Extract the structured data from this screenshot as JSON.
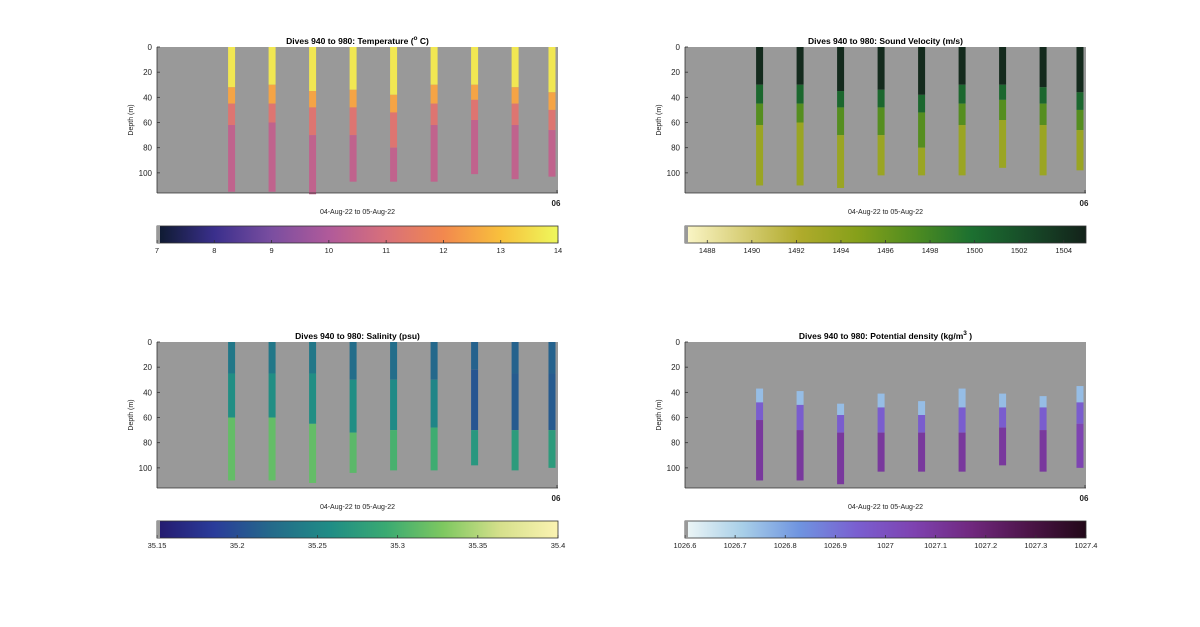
{
  "chart_data": [
    {
      "type": "heatmap",
      "title": "Dives 940 to 980: Temperature (",
      "title_unit": "C)",
      "ylabel": "Depth (m)",
      "xlabel": "04-Aug-22 to 05-Aug-22",
      "x_tick_label": "06",
      "yticks": [
        "0",
        "20",
        "40",
        "60",
        "80",
        "100"
      ],
      "ylim": [
        0,
        116
      ],
      "colorbar": {
        "ticks": [
          "7",
          "8",
          "9",
          "10",
          "11",
          "12",
          "13",
          "14"
        ],
        "range": [
          7,
          14
        ],
        "stops": [
          "#0d1a2e",
          "#3a2f8c",
          "#7a4ea0",
          "#b05a9a",
          "#d8707a",
          "#f2884e",
          "#f8c03c",
          "#eef85c"
        ]
      },
      "profiles": [
        {
          "max_depth": 115,
          "layers": [
            {
              "to": 32,
              "value": 13.7
            },
            {
              "to": 45,
              "value": 12.5
            },
            {
              "to": 62,
              "value": 11.2
            },
            {
              "to": 115,
              "value": 10.4
            }
          ]
        },
        {
          "max_depth": 115,
          "layers": [
            {
              "to": 30,
              "value": 13.7
            },
            {
              "to": 45,
              "value": 12.5
            },
            {
              "to": 60,
              "value": 11.2
            },
            {
              "to": 115,
              "value": 10.4
            }
          ]
        },
        {
          "max_depth": 117,
          "layers": [
            {
              "to": 35,
              "value": 13.7
            },
            {
              "to": 48,
              "value": 12.5
            },
            {
              "to": 70,
              "value": 11.2
            },
            {
              "to": 117,
              "value": 10.4
            }
          ]
        },
        {
          "max_depth": 107,
          "layers": [
            {
              "to": 34,
              "value": 13.7
            },
            {
              "to": 48,
              "value": 12.5
            },
            {
              "to": 70,
              "value": 11.2
            },
            {
              "to": 107,
              "value": 10.4
            }
          ]
        },
        {
          "max_depth": 107,
          "layers": [
            {
              "to": 38,
              "value": 13.7
            },
            {
              "to": 52,
              "value": 12.5
            },
            {
              "to": 80,
              "value": 11.2
            },
            {
              "to": 107,
              "value": 10.4
            }
          ]
        },
        {
          "max_depth": 107,
          "layers": [
            {
              "to": 30,
              "value": 13.7
            },
            {
              "to": 45,
              "value": 12.5
            },
            {
              "to": 62,
              "value": 11.2
            },
            {
              "to": 107,
              "value": 10.4
            }
          ]
        },
        {
          "max_depth": 101,
          "layers": [
            {
              "to": 30,
              "value": 13.7
            },
            {
              "to": 42,
              "value": 12.5
            },
            {
              "to": 58,
              "value": 11.2
            },
            {
              "to": 101,
              "value": 10.4
            }
          ]
        },
        {
          "max_depth": 105,
          "layers": [
            {
              "to": 32,
              "value": 13.7
            },
            {
              "to": 45,
              "value": 12.5
            },
            {
              "to": 62,
              "value": 11.2
            },
            {
              "to": 105,
              "value": 10.4
            }
          ]
        },
        {
          "max_depth": 103,
          "layers": [
            {
              "to": 36,
              "value": 13.7
            },
            {
              "to": 50,
              "value": 12.5
            },
            {
              "to": 66,
              "value": 11.2
            },
            {
              "to": 103,
              "value": 10.4
            }
          ]
        }
      ]
    },
    {
      "type": "heatmap",
      "title": "Dives 940 to 980: Sound Velocity (m/s)",
      "ylabel": "Depth (m)",
      "xlabel": "04-Aug-22 to 05-Aug-22",
      "x_tick_label": "06",
      "yticks": [
        "0",
        "20",
        "40",
        "60",
        "80",
        "100"
      ],
      "ylim": [
        0,
        116
      ],
      "colorbar": {
        "ticks": [
          "1488",
          "1490",
          "1492",
          "1494",
          "1496",
          "1498",
          "1500",
          "1502",
          "1504"
        ],
        "range": [
          1487,
          1505
        ],
        "stops": [
          "#fbf6c8",
          "#d8cf78",
          "#b0ab2c",
          "#86a01a",
          "#4f8c20",
          "#1c7030",
          "#174a28",
          "#13221a"
        ]
      },
      "profiles": [
        {
          "max_depth": 110,
          "layers": [
            {
              "to": 30,
              "value": 1504.5
            },
            {
              "to": 45,
              "value": 1500.5
            },
            {
              "to": 62,
              "value": 1497.0
            },
            {
              "to": 110,
              "value": 1493.5
            }
          ]
        },
        {
          "max_depth": 110,
          "layers": [
            {
              "to": 30,
              "value": 1504.5
            },
            {
              "to": 45,
              "value": 1500.5
            },
            {
              "to": 60,
              "value": 1497.0
            },
            {
              "to": 110,
              "value": 1493.5
            }
          ]
        },
        {
          "max_depth": 112,
          "layers": [
            {
              "to": 35,
              "value": 1504.5
            },
            {
              "to": 48,
              "value": 1500.5
            },
            {
              "to": 70,
              "value": 1497.0
            },
            {
              "to": 112,
              "value": 1493.5
            }
          ]
        },
        {
          "max_depth": 102,
          "layers": [
            {
              "to": 34,
              "value": 1504.5
            },
            {
              "to": 48,
              "value": 1500.5
            },
            {
              "to": 70,
              "value": 1497.0
            },
            {
              "to": 102,
              "value": 1493.5
            }
          ]
        },
        {
          "max_depth": 102,
          "layers": [
            {
              "to": 38,
              "value": 1504.5
            },
            {
              "to": 52,
              "value": 1500.5
            },
            {
              "to": 80,
              "value": 1497.0
            },
            {
              "to": 102,
              "value": 1493.5
            }
          ]
        },
        {
          "max_depth": 102,
          "layers": [
            {
              "to": 30,
              "value": 1504.5
            },
            {
              "to": 45,
              "value": 1500.5
            },
            {
              "to": 62,
              "value": 1497.0
            },
            {
              "to": 102,
              "value": 1493.5
            }
          ]
        },
        {
          "max_depth": 96,
          "layers": [
            {
              "to": 30,
              "value": 1504.5
            },
            {
              "to": 42,
              "value": 1500.5
            },
            {
              "to": 58,
              "value": 1497.0
            },
            {
              "to": 96,
              "value": 1493.5
            }
          ]
        },
        {
          "max_depth": 102,
          "layers": [
            {
              "to": 32,
              "value": 1504.5
            },
            {
              "to": 45,
              "value": 1500.5
            },
            {
              "to": 62,
              "value": 1497.0
            },
            {
              "to": 102,
              "value": 1493.5
            }
          ]
        },
        {
          "max_depth": 98,
          "layers": [
            {
              "to": 36,
              "value": 1504.5
            },
            {
              "to": 50,
              "value": 1500.5
            },
            {
              "to": 66,
              "value": 1497.0
            },
            {
              "to": 98,
              "value": 1493.5
            }
          ]
        }
      ]
    },
    {
      "type": "heatmap",
      "title": "Dives 940 to 980: Salinity (psu)",
      "ylabel": "Depth (m)",
      "xlabel": "04-Aug-22 to 05-Aug-22",
      "x_tick_label": "06",
      "yticks": [
        "0",
        "20",
        "40",
        "60",
        "80",
        "100"
      ],
      "ylim": [
        0,
        116
      ],
      "colorbar": {
        "ticks": [
          "35.15",
          "35.2",
          "35.25",
          "35.3",
          "35.35",
          "35.4"
        ],
        "range": [
          35.15,
          35.4
        ],
        "stops": [
          "#241a6e",
          "#2a3c9a",
          "#246a8a",
          "#1f8c86",
          "#3aaa72",
          "#7ec860",
          "#d6e08c",
          "#fbf3b2"
        ]
      },
      "profiles": [
        {
          "max_depth": 110,
          "layers": [
            {
              "to": 25,
              "value": 35.235
            },
            {
              "to": 60,
              "value": 35.26
            },
            {
              "to": 110,
              "value": 35.315
            }
          ]
        },
        {
          "max_depth": 110,
          "layers": [
            {
              "to": 25,
              "value": 35.235
            },
            {
              "to": 60,
              "value": 35.26
            },
            {
              "to": 110,
              "value": 35.315
            }
          ]
        },
        {
          "max_depth": 112,
          "layers": [
            {
              "to": 25,
              "value": 35.235
            },
            {
              "to": 65,
              "value": 35.26
            },
            {
              "to": 112,
              "value": 35.315
            }
          ]
        },
        {
          "max_depth": 104,
          "layers": [
            {
              "to": 30,
              "value": 35.225
            },
            {
              "to": 72,
              "value": 35.26
            },
            {
              "to": 104,
              "value": 35.31
            }
          ]
        },
        {
          "max_depth": 102,
          "layers": [
            {
              "to": 30,
              "value": 35.225
            },
            {
              "to": 70,
              "value": 35.255
            },
            {
              "to": 102,
              "value": 35.3
            }
          ]
        },
        {
          "max_depth": 102,
          "layers": [
            {
              "to": 30,
              "value": 35.22
            },
            {
              "to": 68,
              "value": 35.25
            },
            {
              "to": 102,
              "value": 35.295
            }
          ]
        },
        {
          "max_depth": 98,
          "layers": [
            {
              "to": 22,
              "value": 35.215
            },
            {
              "to": 70,
              "value": 35.205
            },
            {
              "to": 98,
              "value": 35.27
            }
          ]
        },
        {
          "max_depth": 102,
          "layers": [
            {
              "to": 25,
              "value": 35.215
            },
            {
              "to": 70,
              "value": 35.21
            },
            {
              "to": 102,
              "value": 35.275
            }
          ]
        },
        {
          "max_depth": 100,
          "layers": [
            {
              "to": 25,
              "value": 35.215
            },
            {
              "to": 70,
              "value": 35.21
            },
            {
              "to": 100,
              "value": 35.275
            }
          ]
        }
      ]
    },
    {
      "type": "heatmap",
      "title": "Dives 940 to 980: Potential density (kg/m",
      "title_unit": ")",
      "ylabel": "Depth (m)",
      "xlabel": "04-Aug-22 to 05-Aug-22",
      "x_tick_label": "06",
      "yticks": [
        "0",
        "20",
        "40",
        "60",
        "80",
        "100"
      ],
      "ylim": [
        0,
        116
      ],
      "colorbar": {
        "ticks": [
          "1026.6",
          "1026.7",
          "1026.8",
          "1026.9",
          "1027",
          "1027.1",
          "1027.2",
          "1027.3",
          "1027.4"
        ],
        "range": [
          1026.6,
          1027.4
        ],
        "stops": [
          "#eef6f6",
          "#a8cfe8",
          "#6f94e0",
          "#7a5fd0",
          "#7e42b0",
          "#70287e",
          "#4c1448",
          "#220818"
        ]
      },
      "profiles": [
        {
          "min_depth": 37,
          "max_depth": 110,
          "layers": [
            {
              "to": 48,
              "value": 1026.75
            },
            {
              "to": 62,
              "value": 1026.95
            },
            {
              "to": 110,
              "value": 1027.1
            }
          ]
        },
        {
          "min_depth": 39,
          "max_depth": 110,
          "layers": [
            {
              "to": 50,
              "value": 1026.75
            },
            {
              "to": 70,
              "value": 1026.95
            },
            {
              "to": 110,
              "value": 1027.1
            }
          ]
        },
        {
          "min_depth": 49,
          "max_depth": 113,
          "layers": [
            {
              "to": 58,
              "value": 1026.75
            },
            {
              "to": 72,
              "value": 1026.95
            },
            {
              "to": 113,
              "value": 1027.1
            }
          ]
        },
        {
          "min_depth": 41,
          "max_depth": 103,
          "layers": [
            {
              "to": 52,
              "value": 1026.75
            },
            {
              "to": 72,
              "value": 1026.95
            },
            {
              "to": 103,
              "value": 1027.1
            }
          ]
        },
        {
          "min_depth": 47,
          "max_depth": 103,
          "layers": [
            {
              "to": 58,
              "value": 1026.75
            },
            {
              "to": 72,
              "value": 1026.95
            },
            {
              "to": 103,
              "value": 1027.1
            }
          ]
        },
        {
          "min_depth": 37,
          "max_depth": 103,
          "layers": [
            {
              "to": 52,
              "value": 1026.75
            },
            {
              "to": 72,
              "value": 1026.95
            },
            {
              "to": 103,
              "value": 1027.1
            }
          ]
        },
        {
          "min_depth": 41,
          "max_depth": 98,
          "layers": [
            {
              "to": 52,
              "value": 1026.75
            },
            {
              "to": 68,
              "value": 1026.95
            },
            {
              "to": 98,
              "value": 1027.1
            }
          ]
        },
        {
          "min_depth": 43,
          "max_depth": 103,
          "layers": [
            {
              "to": 52,
              "value": 1026.75
            },
            {
              "to": 70,
              "value": 1026.95
            },
            {
              "to": 103,
              "value": 1027.1
            }
          ]
        },
        {
          "min_depth": 35,
          "max_depth": 100,
          "layers": [
            {
              "to": 48,
              "value": 1026.75
            },
            {
              "to": 65,
              "value": 1026.95
            },
            {
              "to": 100,
              "value": 1027.05
            }
          ]
        }
      ]
    }
  ],
  "colors": {
    "plot_background": "#999999",
    "axis": "#333333",
    "text": "#222222"
  }
}
